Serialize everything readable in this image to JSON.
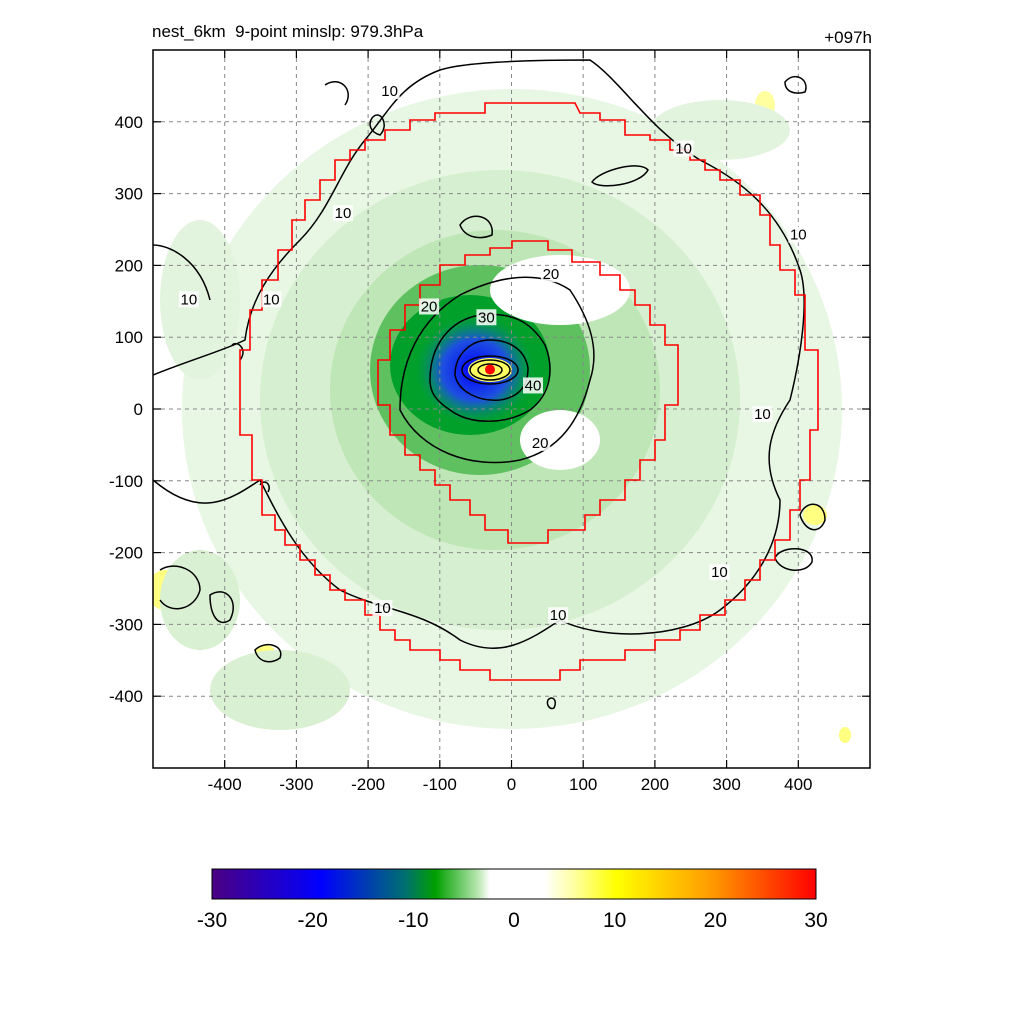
{
  "chart_data": {
    "type": "heatmap",
    "title_left": "nest_6km  9-point minslp: 979.3hPa",
    "title_right": "+097h",
    "xlabel": "",
    "ylabel": "",
    "xlim": [
      -500,
      500
    ],
    "ylim": [
      -500,
      500
    ],
    "x_ticks": [
      -400,
      -300,
      -200,
      -100,
      0,
      100,
      200,
      300,
      400
    ],
    "y_ticks": [
      400,
      300,
      200,
      100,
      0,
      -100,
      -200,
      -300,
      -400
    ],
    "grid": true,
    "center_marker": {
      "x": -30,
      "y": 55,
      "color": "#ff0000"
    },
    "contour_levels": [
      10,
      20,
      30,
      40
    ],
    "contour_labels": [
      {
        "text": "10",
        "x": -170,
        "y": 440
      },
      {
        "text": "10",
        "x": -235,
        "y": 270
      },
      {
        "text": "10",
        "x": -335,
        "y": 150
      },
      {
        "text": "10",
        "x": -450,
        "y": 150
      },
      {
        "text": "10",
        "x": 240,
        "y": 360
      },
      {
        "text": "10",
        "x": 400,
        "y": 240
      },
      {
        "text": "10",
        "x": 350,
        "y": -10
      },
      {
        "text": "10",
        "x": 290,
        "y": -230
      },
      {
        "text": "10",
        "x": -180,
        "y": -280
      },
      {
        "text": "10",
        "x": 65,
        "y": -290
      },
      {
        "text": "20",
        "x": 55,
        "y": 185
      },
      {
        "text": "20",
        "x": -115,
        "y": 140
      },
      {
        "text": "20",
        "x": 40,
        "y": -50
      },
      {
        "text": "30",
        "x": -35,
        "y": 125
      },
      {
        "text": "40",
        "x": 30,
        "y": 30
      }
    ],
    "colorbar": {
      "min": -30,
      "max": 30,
      "tick_labels": [
        "-30",
        "-20",
        "-10",
        "0",
        "10",
        "20",
        "30"
      ],
      "colors": [
        "#4b0082",
        "#0000ff",
        "#008080",
        "#00a000",
        "#b8e6b0",
        "#ffffff",
        "#ffffa0",
        "#ffff00",
        "#ffa000",
        "#ff0000"
      ]
    },
    "boundary_color": "#ff0000"
  }
}
